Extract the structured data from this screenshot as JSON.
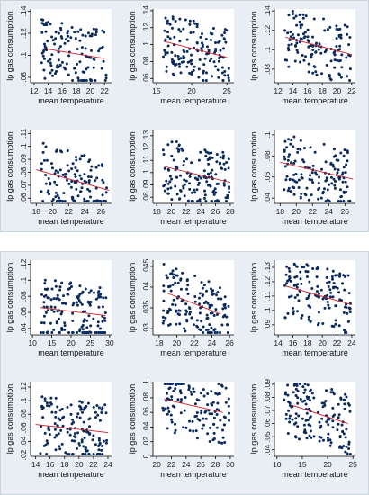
{
  "colors": {
    "points": "#0b2a5c",
    "fit_line": "#d21f2a",
    "panel_bg": "#e8eef3",
    "plot_bg": "#ffffff"
  },
  "chart_data": [
    {
      "type": "scatter",
      "group": 1,
      "xlabel": "mean temperature",
      "ylabel": "lp gas consumption",
      "xlim": [
        11.5,
        23
      ],
      "ylim": [
        0.075,
        0.142
      ],
      "xticks": [
        12,
        14,
        16,
        18,
        20,
        22
      ],
      "xticklabels": [
        "12",
        "14",
        "16",
        "18",
        "20",
        "22"
      ],
      "yticks": [
        0.08,
        0.1,
        0.12,
        0.14
      ],
      "yticklabels": [
        ".08",
        ".1",
        ".12",
        ".14"
      ],
      "n": 130,
      "seed": 11,
      "trend": [
        [
          13.5,
          0.106
        ],
        [
          22,
          0.097
        ]
      ]
    },
    {
      "type": "scatter",
      "group": 1,
      "xlabel": "mean temperature",
      "ylabel": "lp gas consumption",
      "xlim": [
        14.5,
        26
      ],
      "ylim": [
        0.055,
        0.142
      ],
      "xticks": [
        15,
        20,
        25
      ],
      "xticklabels": [
        "15",
        "20",
        "25"
      ],
      "yticks": [
        0.06,
        0.08,
        0.1,
        0.12,
        0.14
      ],
      "yticklabels": [
        ".06",
        ".08",
        ".1",
        ".12",
        ".14"
      ],
      "n": 150,
      "seed": 23,
      "trend": [
        [
          16,
          0.104
        ],
        [
          25,
          0.085
        ]
      ]
    },
    {
      "type": "scatter",
      "group": 1,
      "xlabel": "mean temperature",
      "ylabel": "lp gas consumption",
      "xlim": [
        11.5,
        22.5
      ],
      "ylim": [
        0.066,
        0.142
      ],
      "xticks": [
        12,
        14,
        16,
        18,
        20,
        22
      ],
      "xticklabels": [
        "12",
        "14",
        "16",
        "18",
        "20",
        "22"
      ],
      "yticks": [
        0.08,
        0.1,
        0.12,
        0.14
      ],
      "yticklabels": [
        ".08",
        ".1",
        ".12",
        ".14"
      ],
      "n": 130,
      "seed": 37,
      "trend": [
        [
          13,
          0.113
        ],
        [
          22,
          0.095
        ]
      ]
    },
    {
      "type": "scatter",
      "group": 1,
      "xlabel": "mean temperature",
      "ylabel": "lp gas consumption",
      "xlim": [
        17.3,
        27.3
      ],
      "ylim": [
        0.056,
        0.113
      ],
      "xticks": [
        18,
        20,
        22,
        24,
        26
      ],
      "xticklabels": [
        "18",
        "20",
        "22",
        "24",
        "26"
      ],
      "yticks": [
        0.06,
        0.07,
        0.08,
        0.09,
        0.1,
        0.11
      ],
      "yticklabels": [
        ".06",
        ".07",
        ".08",
        ".09",
        ".1",
        ".11"
      ],
      "n": 130,
      "seed": 41,
      "trend": [
        [
          18,
          0.082
        ],
        [
          27,
          0.066
        ]
      ]
    },
    {
      "type": "scatter",
      "group": 1,
      "xlabel": "mean temperature",
      "ylabel": "lp gas consumption",
      "xlim": [
        17.5,
        28.5
      ],
      "ylim": [
        0.075,
        0.135
      ],
      "xticks": [
        18,
        20,
        22,
        24,
        26,
        28
      ],
      "xticklabels": [
        "18",
        "20",
        "22",
        "24",
        "26",
        "28"
      ],
      "yticks": [
        0.08,
        0.09,
        0.1,
        0.11,
        0.12,
        0.13
      ],
      "yticklabels": [
        ".08",
        ".09",
        ".1",
        ".11",
        ".12",
        ".13"
      ],
      "n": 150,
      "seed": 53,
      "trend": [
        [
          19,
          0.105
        ],
        [
          28,
          0.092
        ]
      ]
    },
    {
      "type": "scatter",
      "group": 1,
      "xlabel": "mean temperature",
      "ylabel": "lp gas consumption",
      "xlim": [
        17.3,
        27.3
      ],
      "ylim": [
        0.035,
        0.105
      ],
      "xticks": [
        18,
        20,
        22,
        24,
        26
      ],
      "xticklabels": [
        "18",
        "20",
        "22",
        "24",
        "26"
      ],
      "yticks": [
        0.04,
        0.06,
        0.08,
        0.1
      ],
      "yticklabels": [
        ".04",
        ".06",
        ".08",
        ".1"
      ],
      "n": 140,
      "seed": 67,
      "trend": [
        [
          18,
          0.074
        ],
        [
          27,
          0.058
        ]
      ]
    },
    {
      "type": "scatter",
      "group": 2,
      "xlabel": "mean temperature",
      "ylabel": "lp gas consumption",
      "xlim": [
        9.5,
        30.5
      ],
      "ylim": [
        0.032,
        0.125
      ],
      "xticks": [
        10,
        15,
        20,
        25,
        30
      ],
      "xticklabels": [
        "10",
        "15",
        "20",
        "25",
        "30"
      ],
      "yticks": [
        0.04,
        0.06,
        0.08,
        0.1,
        0.12
      ],
      "yticklabels": [
        ".04",
        ".06",
        ".08",
        ".1",
        ".12"
      ],
      "n": 150,
      "seed": 71,
      "trend": [
        [
          12,
          0.066
        ],
        [
          29,
          0.056
        ]
      ]
    },
    {
      "type": "scatter",
      "group": 2,
      "xlabel": "mean temperature",
      "ylabel": "lp gas consumption",
      "xlim": [
        17.3,
        26.5
      ],
      "ylim": [
        0.0285,
        0.0465
      ],
      "xticks": [
        18,
        20,
        22,
        24,
        26
      ],
      "xticklabels": [
        "18",
        "20",
        "22",
        "24",
        "26"
      ],
      "yticks": [
        0.03,
        0.035,
        0.04,
        0.045
      ],
      "yticklabels": [
        ".03",
        ".035",
        ".04",
        ".045"
      ],
      "n": 150,
      "seed": 83,
      "trend": [
        [
          19,
          0.0385
        ],
        [
          25,
          0.0335
        ]
      ]
    },
    {
      "type": "scatter",
      "group": 2,
      "xlabel": "mean temperature",
      "ylabel": "lp gas consumption",
      "xlim": [
        13.5,
        24.5
      ],
      "ylim": [
        0.083,
        0.135
      ],
      "xticks": [
        14,
        16,
        18,
        20,
        22,
        24
      ],
      "xticklabels": [
        "14",
        "16",
        "18",
        "20",
        "22",
        "24"
      ],
      "yticks": [
        0.09,
        0.1,
        0.11,
        0.12,
        0.13
      ],
      "yticklabels": [
        ".09",
        ".1",
        ".11",
        ".12",
        ".13"
      ],
      "n": 140,
      "seed": 97,
      "trend": [
        [
          15,
          0.117
        ],
        [
          24,
          0.104
        ]
      ]
    },
    {
      "type": "scatter",
      "group": 2,
      "xlabel": "mean temperature",
      "ylabel": "lp gas consumption",
      "xlim": [
        13.3,
        24.5
      ],
      "ylim": [
        0.018,
        0.128
      ],
      "xticks": [
        14,
        16,
        18,
        20,
        22,
        24
      ],
      "xticklabels": [
        "14",
        "16",
        "18",
        "20",
        "22",
        "24"
      ],
      "yticks": [
        0.02,
        0.04,
        0.06,
        0.08,
        0.1,
        0.12
      ],
      "yticklabels": [
        ".02",
        ".04",
        ".06",
        ".08",
        ".1",
        ".12"
      ],
      "n": 150,
      "seed": 103,
      "trend": [
        [
          14,
          0.065
        ],
        [
          24,
          0.053
        ]
      ]
    },
    {
      "type": "scatter",
      "group": 2,
      "xlabel": "mean temperature",
      "ylabel": "lp gas consumption",
      "xlim": [
        19.5,
        30.5
      ],
      "ylim": [
        0.0,
        0.102
      ],
      "xticks": [
        20,
        22,
        24,
        26,
        28,
        30
      ],
      "xticklabels": [
        "20",
        "22",
        "24",
        "26",
        "28",
        "30"
      ],
      "yticks": [
        0,
        0.02,
        0.04,
        0.06,
        0.08,
        0.1
      ],
      "yticklabels": [
        "0",
        ".02",
        ".04",
        ".06",
        ".08",
        ".1"
      ],
      "n": 130,
      "seed": 113,
      "trend": [
        [
          21,
          0.078
        ],
        [
          29,
          0.06
        ]
      ]
    },
    {
      "type": "scatter",
      "group": 2,
      "xlabel": "mean temperature",
      "ylabel": "lp gas consumption",
      "xlim": [
        9.5,
        25.5
      ],
      "ylim": [
        0.035,
        0.092
      ],
      "xticks": [
        10,
        15,
        20,
        25
      ],
      "xticklabels": [
        "10",
        "15",
        "20",
        "25"
      ],
      "yticks": [
        0.04,
        0.05,
        0.06,
        0.07,
        0.08,
        0.09
      ],
      "yticklabels": [
        ".04",
        ".05",
        ".06",
        ".07",
        ".08",
        ".09"
      ],
      "n": 150,
      "seed": 127,
      "trend": [
        [
          13,
          0.074
        ],
        [
          24,
          0.06
        ]
      ]
    }
  ]
}
